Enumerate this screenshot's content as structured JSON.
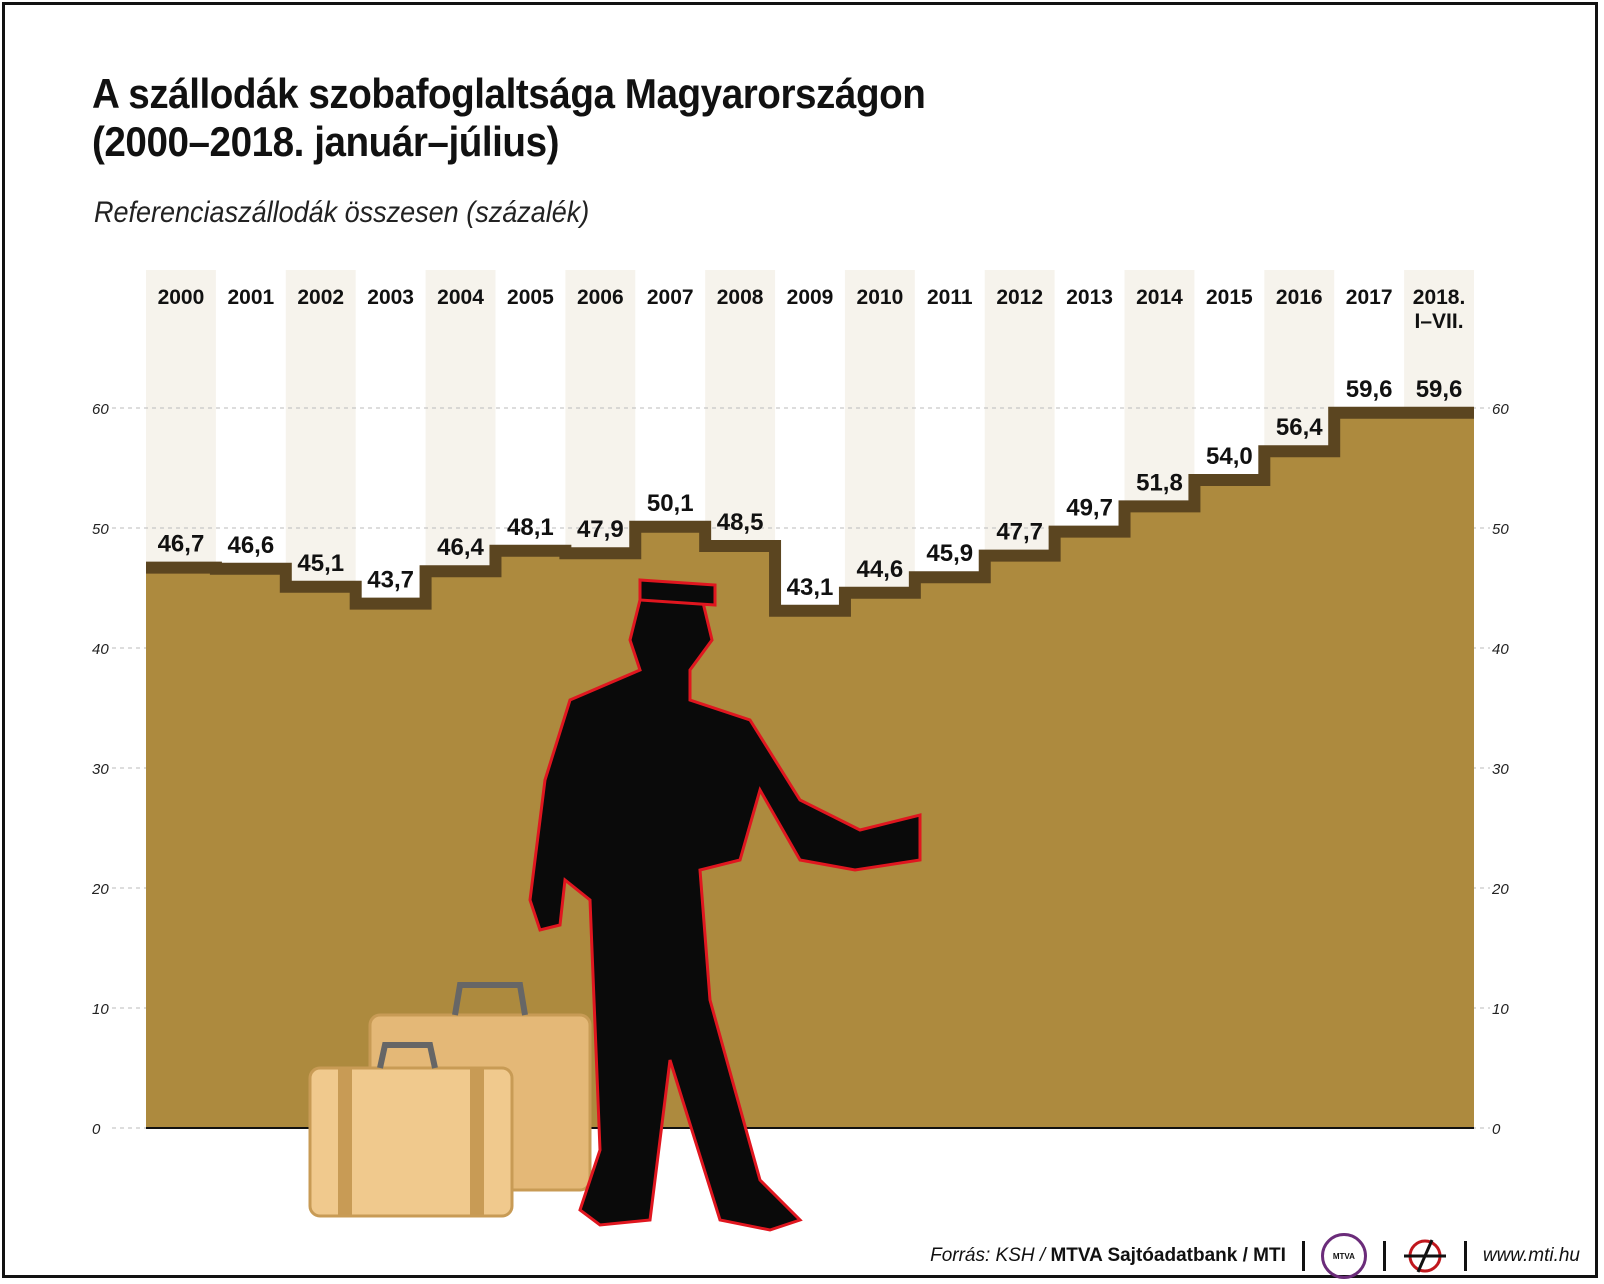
{
  "header": {
    "title_line1": "A szállodák szobafoglaltsága Magyarországon",
    "title_line2": "(2000–2018. január–július)",
    "subtitle": "Referenciaszállodák összesen (százalék)"
  },
  "chart_data": {
    "type": "area",
    "style": "step",
    "title": "A szállodák szobafoglaltsága Magyarországon (2000–2018. január–július)",
    "subtitle": "Referenciaszállodák összesen (százalék)",
    "xlabel": "",
    "ylabel": "százalék",
    "categories": [
      "2000",
      "2001",
      "2002",
      "2003",
      "2004",
      "2005",
      "2006",
      "2007",
      "2008",
      "2009",
      "2010",
      "2011",
      "2012",
      "2013",
      "2014",
      "2015",
      "2016",
      "2017",
      "2018. I–VII."
    ],
    "values": [
      46.7,
      46.6,
      45.1,
      43.7,
      46.4,
      48.1,
      47.9,
      50.1,
      48.5,
      43.1,
      44.6,
      45.9,
      47.7,
      49.7,
      51.8,
      54.0,
      56.4,
      59.6,
      59.6
    ],
    "value_labels": [
      "46,7",
      "46,6",
      "45,1",
      "43,7",
      "46,4",
      "48,1",
      "47,9",
      "50,1",
      "48,5",
      "43,1",
      "44,6",
      "45,9",
      "47,7",
      "49,7",
      "51,8",
      "54,0",
      "56,4",
      "59,6",
      "59,6"
    ],
    "yticks": [
      0,
      10,
      20,
      30,
      40,
      50,
      60
    ],
    "ylim": [
      0,
      60
    ],
    "grid": true,
    "legend": null,
    "colors": {
      "area": "#ad8a3e",
      "step_line": "#5b4520",
      "column_band": "#f6f3ec",
      "grid": "#bbbbbb"
    }
  },
  "footer": {
    "source_prefix": "Forrás: KSH /",
    "source_bold": "MTVA Sajtóadatbank / MTI",
    "logo1_label": "MTVA",
    "url": "www.mti.hu"
  }
}
